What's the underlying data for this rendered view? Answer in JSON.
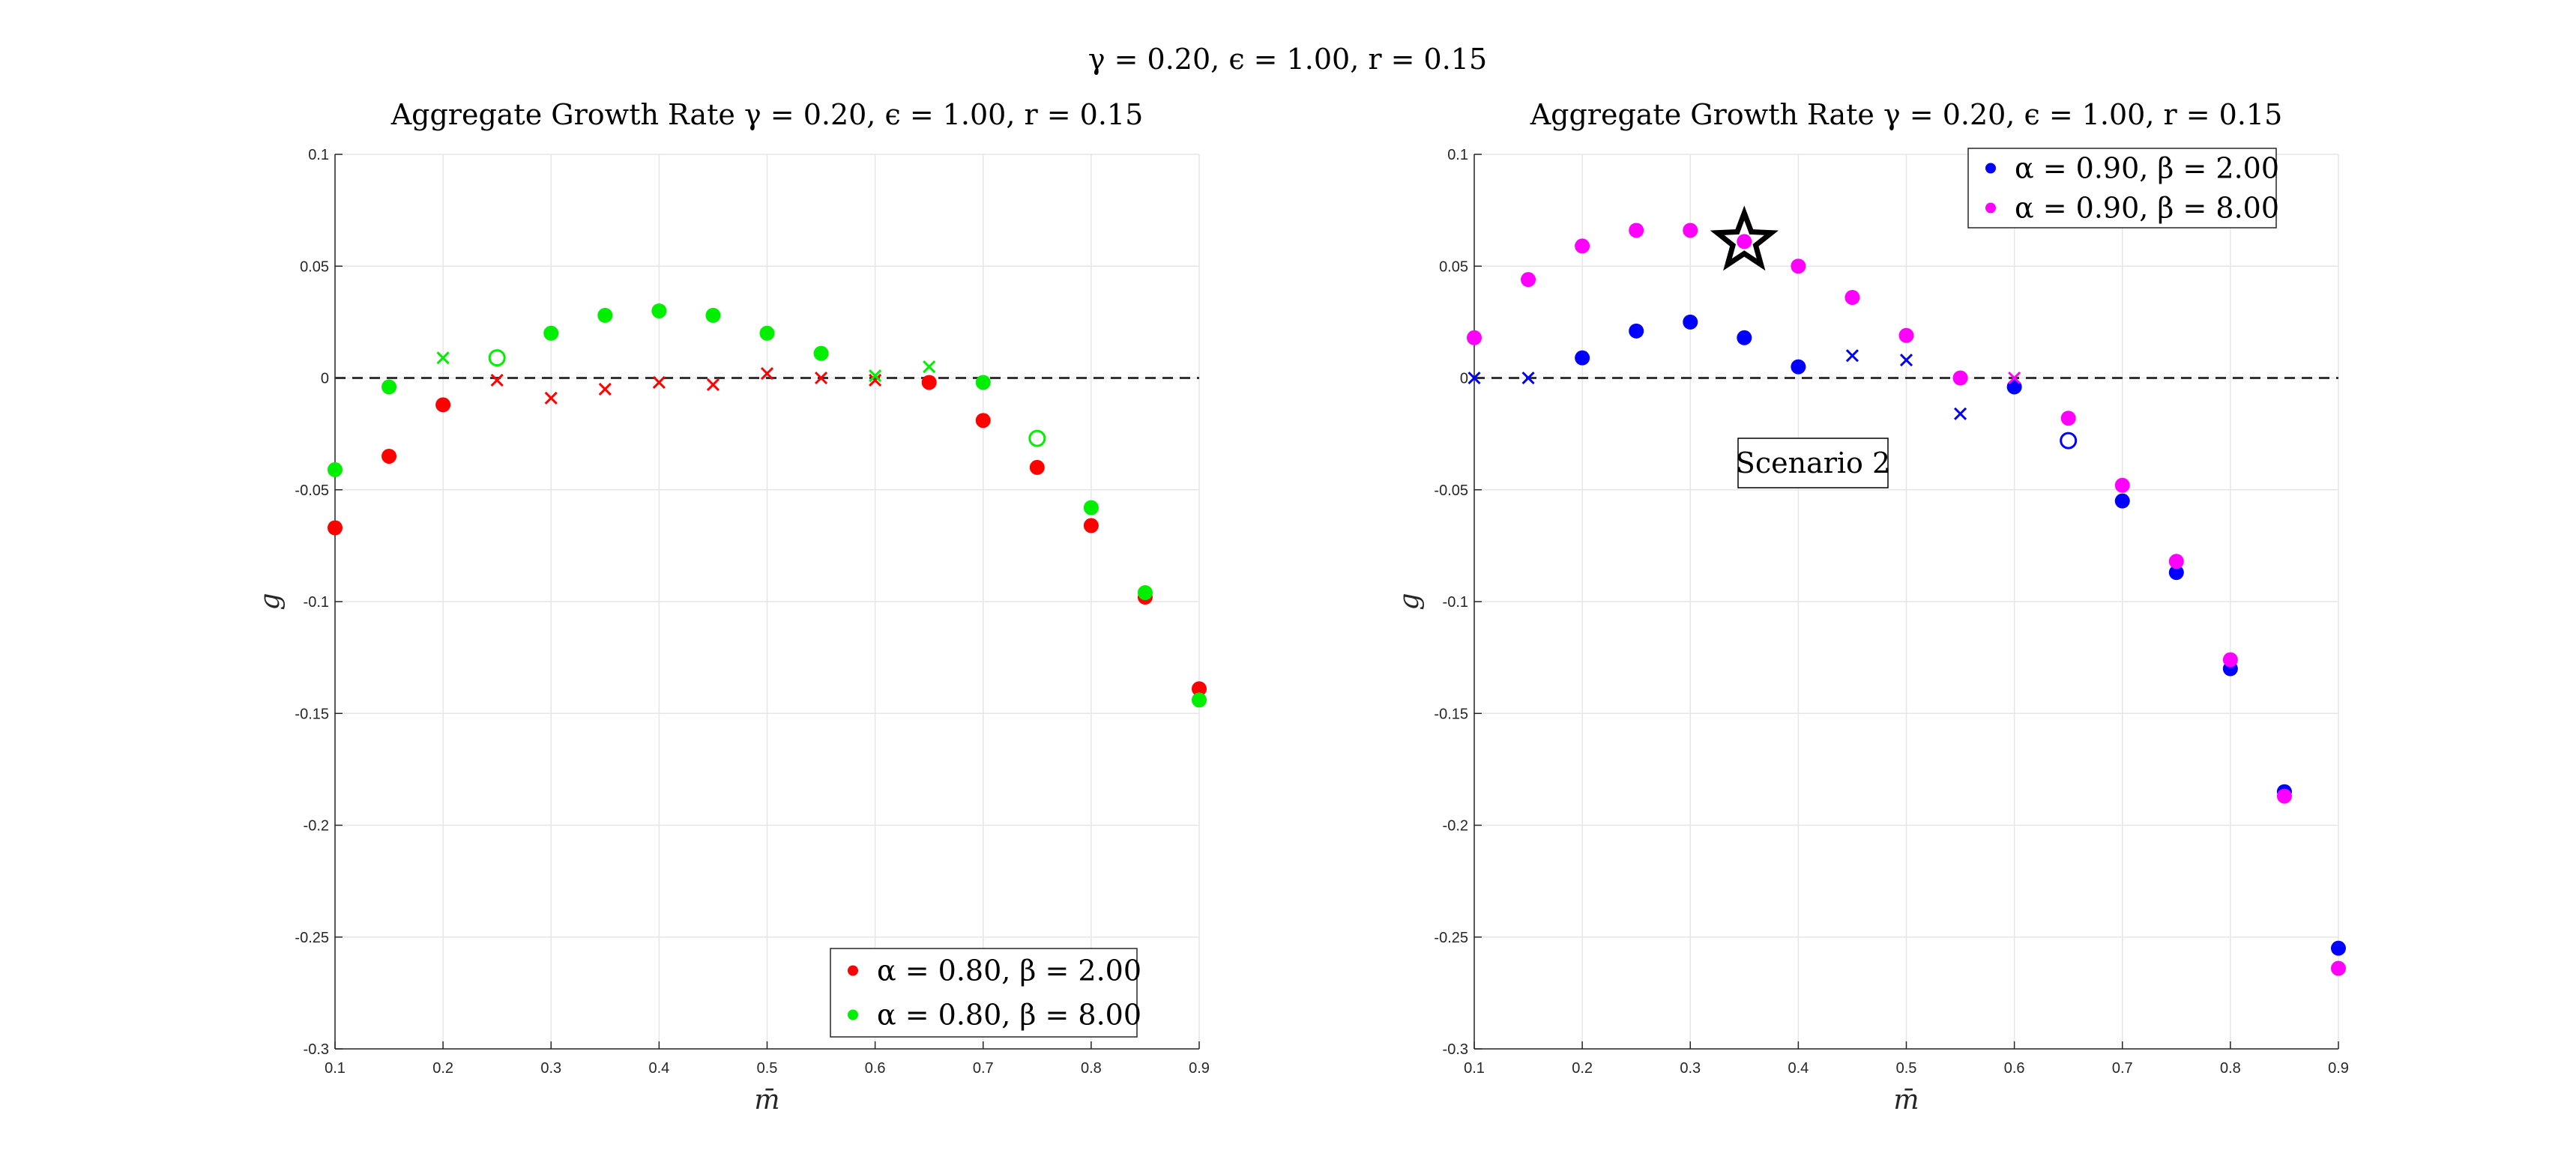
{
  "suptitle": "γ = 0.20, ϵ = 1.00, r = 0.15",
  "chart_data": [
    {
      "type": "scatter",
      "title": "Aggregate Growth Rate γ = 0.20, ϵ = 1.00, r = 0.15",
      "xlabel": "m̄",
      "ylabel": "g",
      "xlim": [
        0.1,
        0.9
      ],
      "ylim": [
        -0.3,
        0.1
      ],
      "xticks": [
        "0.1",
        "0.2",
        "0.3",
        "0.4",
        "0.5",
        "0.6",
        "0.7",
        "0.8",
        "0.9"
      ],
      "yticks": [
        "0.1",
        "0.05",
        "0",
        "-0.05",
        "-0.1",
        "-0.15",
        "-0.2",
        "-0.25",
        "-0.3"
      ],
      "grid": true,
      "reference_line": {
        "y": 0,
        "style": "dashed",
        "color": "#333333"
      },
      "legend_position": "bottom-right",
      "series": [
        {
          "name": "α = 0.80, β = 2.00",
          "color": "#ff0000",
          "points": [
            {
              "x": 0.1,
              "y": -0.067,
              "m": "dot"
            },
            {
              "x": 0.15,
              "y": -0.035,
              "m": "dot"
            },
            {
              "x": 0.2,
              "y": -0.012,
              "m": "dot"
            },
            {
              "x": 0.25,
              "y": -0.001,
              "m": "x"
            },
            {
              "x": 0.3,
              "y": -0.009,
              "m": "x"
            },
            {
              "x": 0.35,
              "y": -0.005,
              "m": "x"
            },
            {
              "x": 0.4,
              "y": -0.002,
              "m": "x"
            },
            {
              "x": 0.45,
              "y": -0.003,
              "m": "x"
            },
            {
              "x": 0.5,
              "y": 0.002,
              "m": "x"
            },
            {
              "x": 0.55,
              "y": 0.0,
              "m": "x"
            },
            {
              "x": 0.6,
              "y": -0.001,
              "m": "x"
            },
            {
              "x": 0.65,
              "y": -0.002,
              "m": "dot"
            },
            {
              "x": 0.7,
              "y": -0.019,
              "m": "dot"
            },
            {
              "x": 0.75,
              "y": -0.04,
              "m": "dot"
            },
            {
              "x": 0.8,
              "y": -0.066,
              "m": "dot"
            },
            {
              "x": 0.85,
              "y": -0.098,
              "m": "dot"
            },
            {
              "x": 0.9,
              "y": -0.139,
              "m": "dot"
            }
          ]
        },
        {
          "name": "α = 0.80, β = 8.00",
          "color": "#00ee00",
          "points": [
            {
              "x": 0.1,
              "y": -0.041,
              "m": "dot"
            },
            {
              "x": 0.15,
              "y": -0.004,
              "m": "dot"
            },
            {
              "x": 0.2,
              "y": 0.009,
              "m": "x"
            },
            {
              "x": 0.25,
              "y": 0.009,
              "m": "ring"
            },
            {
              "x": 0.3,
              "y": 0.02,
              "m": "dot"
            },
            {
              "x": 0.35,
              "y": 0.028,
              "m": "dot"
            },
            {
              "x": 0.4,
              "y": 0.03,
              "m": "dot"
            },
            {
              "x": 0.45,
              "y": 0.028,
              "m": "dot"
            },
            {
              "x": 0.5,
              "y": 0.02,
              "m": "dot"
            },
            {
              "x": 0.55,
              "y": 0.011,
              "m": "dot"
            },
            {
              "x": 0.6,
              "y": 0.001,
              "m": "x"
            },
            {
              "x": 0.65,
              "y": 0.005,
              "m": "x"
            },
            {
              "x": 0.7,
              "y": -0.002,
              "m": "dot"
            },
            {
              "x": 0.75,
              "y": -0.027,
              "m": "ring"
            },
            {
              "x": 0.8,
              "y": -0.058,
              "m": "dot"
            },
            {
              "x": 0.85,
              "y": -0.096,
              "m": "dot"
            },
            {
              "x": 0.9,
              "y": -0.144,
              "m": "dot"
            }
          ]
        }
      ]
    },
    {
      "type": "scatter",
      "title": "Aggregate Growth Rate γ = 0.20, ϵ = 1.00, r = 0.15",
      "xlabel": "m̄",
      "ylabel": "g",
      "xlim": [
        0.1,
        0.9
      ],
      "ylim": [
        -0.3,
        0.1
      ],
      "xticks": [
        "0.1",
        "0.2",
        "0.3",
        "0.4",
        "0.5",
        "0.6",
        "0.7",
        "0.8",
        "0.9"
      ],
      "yticks": [
        "0.1",
        "0.05",
        "0",
        "-0.05",
        "-0.1",
        "-0.15",
        "-0.2",
        "-0.25",
        "-0.3"
      ],
      "grid": true,
      "reference_line": {
        "y": 0,
        "style": "dashed",
        "color": "#333333"
      },
      "legend_position": "top-right",
      "annotation": "Scenario 2",
      "star_marker": {
        "x": 0.35,
        "y": 0.061
      },
      "series": [
        {
          "name": "α = 0.90, β = 2.00",
          "color": "#0000ff",
          "points": [
            {
              "x": 0.1,
              "y": 0.0,
              "m": "x"
            },
            {
              "x": 0.15,
              "y": 0.0,
              "m": "x"
            },
            {
              "x": 0.2,
              "y": 0.009,
              "m": "dot"
            },
            {
              "x": 0.25,
              "y": 0.021,
              "m": "dot"
            },
            {
              "x": 0.3,
              "y": 0.025,
              "m": "dot"
            },
            {
              "x": 0.35,
              "y": 0.018,
              "m": "dot"
            },
            {
              "x": 0.4,
              "y": 0.005,
              "m": "dot"
            },
            {
              "x": 0.45,
              "y": 0.01,
              "m": "x"
            },
            {
              "x": 0.5,
              "y": 0.008,
              "m": "x"
            },
            {
              "x": 0.55,
              "y": -0.016,
              "m": "x"
            },
            {
              "x": 0.6,
              "y": -0.004,
              "m": "dot"
            },
            {
              "x": 0.65,
              "y": -0.028,
              "m": "ring"
            },
            {
              "x": 0.7,
              "y": -0.055,
              "m": "dot"
            },
            {
              "x": 0.75,
              "y": -0.087,
              "m": "dot"
            },
            {
              "x": 0.8,
              "y": -0.13,
              "m": "dot"
            },
            {
              "x": 0.85,
              "y": -0.185,
              "m": "dot"
            },
            {
              "x": 0.9,
              "y": -0.255,
              "m": "dot"
            }
          ]
        },
        {
          "name": "α = 0.90, β = 8.00",
          "color": "#ff00ff",
          "points": [
            {
              "x": 0.1,
              "y": 0.018,
              "m": "dot"
            },
            {
              "x": 0.15,
              "y": 0.044,
              "m": "dot"
            },
            {
              "x": 0.2,
              "y": 0.059,
              "m": "dot"
            },
            {
              "x": 0.25,
              "y": 0.066,
              "m": "dot"
            },
            {
              "x": 0.3,
              "y": 0.066,
              "m": "dot"
            },
            {
              "x": 0.35,
              "y": 0.061,
              "m": "dot"
            },
            {
              "x": 0.4,
              "y": 0.05,
              "m": "dot"
            },
            {
              "x": 0.45,
              "y": 0.036,
              "m": "dot"
            },
            {
              "x": 0.5,
              "y": 0.019,
              "m": "dot"
            },
            {
              "x": 0.55,
              "y": 0.0,
              "m": "dot"
            },
            {
              "x": 0.6,
              "y": 0.0,
              "m": "x"
            },
            {
              "x": 0.65,
              "y": -0.018,
              "m": "dot"
            },
            {
              "x": 0.7,
              "y": -0.048,
              "m": "dot"
            },
            {
              "x": 0.75,
              "y": -0.082,
              "m": "dot"
            },
            {
              "x": 0.8,
              "y": -0.126,
              "m": "dot"
            },
            {
              "x": 0.85,
              "y": -0.187,
              "m": "dot"
            },
            {
              "x": 0.9,
              "y": -0.264,
              "m": "dot"
            }
          ]
        }
      ]
    }
  ]
}
